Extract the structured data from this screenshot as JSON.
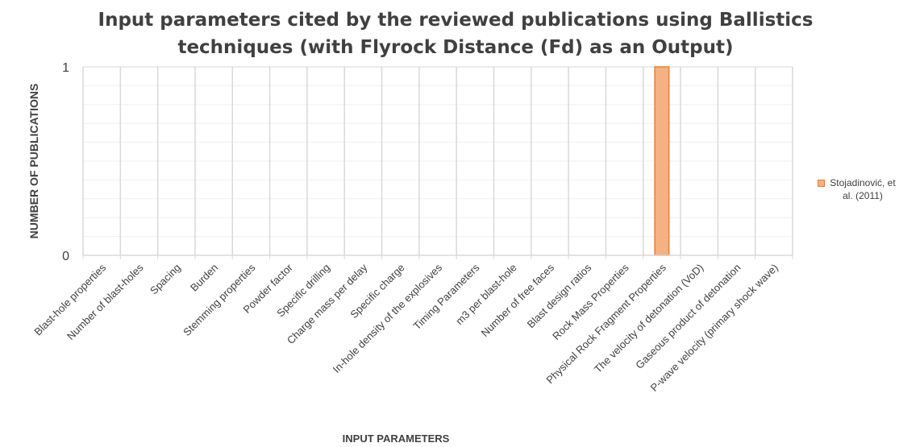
{
  "chart_data": {
    "type": "bar",
    "title": "Input parameters cited by the reviewed publications using Ballistics techniques (with Flyrock Distance (Fd) as an Output)",
    "xlabel": "INPUT PARAMETERS",
    "ylabel": "NUMBER OF PUBLICATIONS",
    "ylim": [
      0,
      1
    ],
    "yticks": [
      "0",
      "1"
    ],
    "grid": true,
    "legend": "right",
    "categories": [
      "Blast-hole properties",
      "Number of blast-holes",
      "Spacing",
      "Burden",
      "Stemming properties",
      "Powder factor",
      "Specific drilling",
      "Charge mass per delay",
      "Specific charge",
      "In-hole density of the explosives",
      "Timing Parameters",
      "m3 per blast-hole",
      "Number of free faces",
      "Blast design ratios",
      "Rock Mass Properties",
      "Physical Rock Fragment Properties",
      "The velocity of detonation (VoD)",
      "Gaseous product of detonation",
      "P-wave velocity (primary shock wave)"
    ],
    "series": [
      {
        "name": "Stojadinović, et al. (2011)",
        "color": "#f4b183",
        "values": [
          0,
          0,
          0,
          0,
          0,
          0,
          0,
          0,
          0,
          0,
          0,
          0,
          0,
          0,
          0,
          1,
          0,
          0,
          0
        ]
      }
    ]
  }
}
